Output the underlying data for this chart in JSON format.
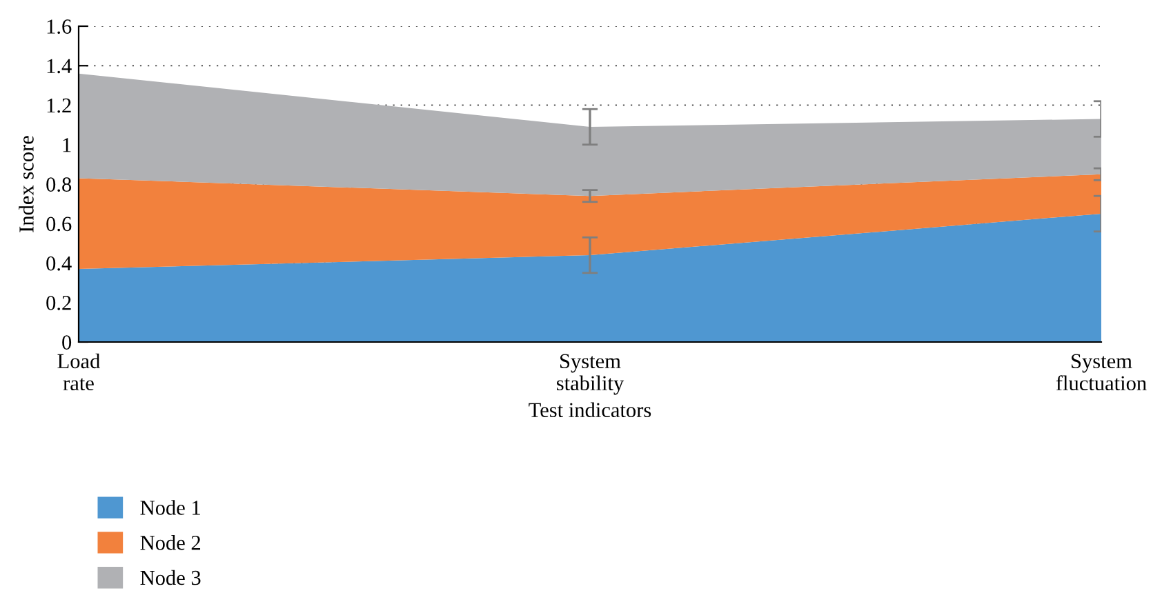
{
  "chart_data": {
    "type": "area",
    "stacked": true,
    "xlabel": "Test indicators",
    "ylabel": "Index score",
    "categories": [
      "Load\nrate",
      "System\nstability",
      "System\nfluctuation"
    ],
    "series": [
      {
        "name": "Node 1",
        "color": "#4f97d1",
        "values": [
          0.37,
          0.44,
          0.65
        ],
        "errors": [
          null,
          0.09,
          0.09
        ]
      },
      {
        "name": "Node 2",
        "color": "#f2813d",
        "values": [
          0.46,
          0.3,
          0.2
        ],
        "errors": [
          null,
          0.03,
          0.03
        ]
      },
      {
        "name": "Node 3",
        "color": "#b0b1b4",
        "values": [
          0.53,
          0.35,
          0.28
        ],
        "errors": [
          null,
          0.09,
          0.09
        ]
      }
    ],
    "ylim": [
      0,
      1.6
    ],
    "yticks": [
      0,
      0.2,
      0.4,
      0.6,
      0.8,
      1,
      1.2,
      1.4,
      1.6
    ],
    "grid": "y",
    "legend": "bottom left"
  }
}
